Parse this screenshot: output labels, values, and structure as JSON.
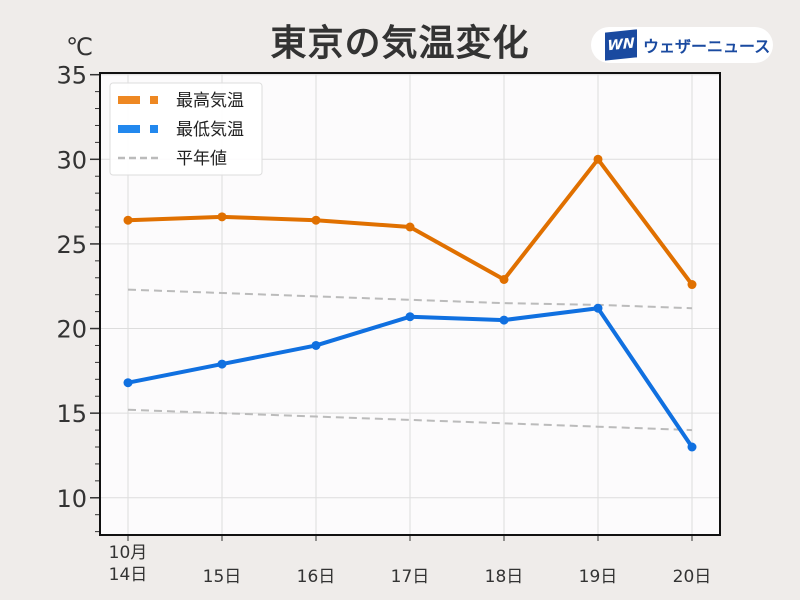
{
  "chart_data": {
    "type": "line",
    "title": "東京の気温変化",
    "ylabel": "℃",
    "ylim": [
      7.8,
      35.1
    ],
    "yticks": [
      10,
      15,
      20,
      25,
      30,
      35
    ],
    "categories": [
      "10月\n14日",
      "15日",
      "16日",
      "17日",
      "18日",
      "19日",
      "20日"
    ],
    "grid": true,
    "legend_position": "top-left",
    "series": [
      {
        "name": "最高気温",
        "color": "#e07000",
        "values": [
          26.4,
          26.6,
          26.4,
          26.0,
          22.9,
          30.0,
          22.6
        ]
      },
      {
        "name": "最低気温",
        "color": "#1070e0",
        "values": [
          16.8,
          17.9,
          19.0,
          20.7,
          20.5,
          21.2,
          13.0
        ]
      },
      {
        "name": "平年値",
        "color": "#bbbbbb",
        "dashed": true,
        "lines": [
          [
            22.3,
            22.1,
            21.9,
            21.7,
            21.5,
            21.4,
            21.2
          ],
          [
            15.2,
            15.0,
            14.8,
            14.6,
            14.4,
            14.2,
            14.0
          ]
        ]
      }
    ]
  },
  "logo": {
    "mark": "WN",
    "text": "ウェザーニュース"
  }
}
